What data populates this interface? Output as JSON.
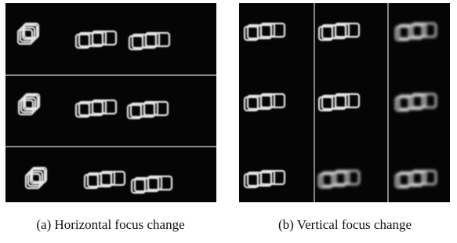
{
  "figures": [
    {
      "caption": "(a) Horizontal focus change"
    },
    {
      "caption": "(b) Vertical focus change"
    }
  ]
}
